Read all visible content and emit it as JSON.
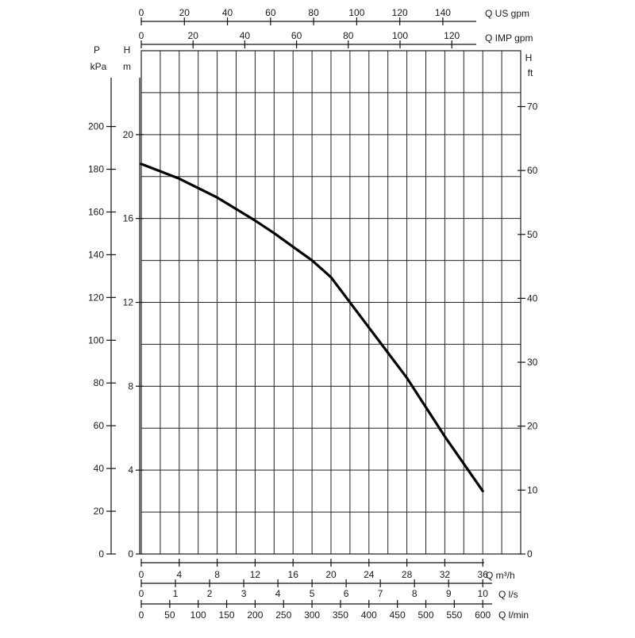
{
  "chart_data": {
    "type": "line",
    "title": "",
    "series": [
      {
        "x": [
          0,
          4,
          8,
          12,
          14,
          18,
          20,
          24,
          26,
          28,
          30,
          32,
          34,
          36
        ],
        "y": [
          18.6,
          17.9,
          17.0,
          15.9,
          15.3,
          14.0,
          13.2,
          10.8,
          9.6,
          8.4,
          7.0,
          5.6,
          4.3,
          3.0
        ]
      }
    ],
    "x_axes": [
      {
        "label": "Q m³/h",
        "ticks": [
          "0",
          "4",
          "8",
          "12",
          "16",
          "20",
          "24",
          "28",
          "32",
          "36"
        ],
        "range": [
          0,
          40
        ]
      },
      {
        "label": "Q l/s",
        "ticks": [
          "0",
          "1",
          "2",
          "3",
          "4",
          "5",
          "6",
          "7",
          "8",
          "9",
          "10"
        ]
      },
      {
        "label": "Q l/min",
        "ticks": [
          "0",
          "50",
          "100",
          "150",
          "200",
          "250",
          "300",
          "350",
          "400",
          "450",
          "500",
          "550",
          "600"
        ]
      },
      {
        "label": "Q US gpm",
        "ticks": [
          "0",
          "20",
          "40",
          "60",
          "80",
          "100",
          "120",
          "140"
        ]
      },
      {
        "label": "Q IMP gpm",
        "ticks": [
          "0",
          "20",
          "40",
          "60",
          "80",
          "100",
          "120"
        ]
      }
    ],
    "y_axes": [
      {
        "label_top": "P",
        "label_bottom": "kPa",
        "ticks": [
          "0",
          "20",
          "40",
          "60",
          "80",
          "100",
          "120",
          "140",
          "160",
          "180",
          "200"
        ]
      },
      {
        "label_top": "H",
        "label_bottom": "m",
        "ticks": [
          "0",
          "4",
          "8",
          "12",
          "16",
          "20"
        ],
        "range": [
          0,
          24
        ]
      },
      {
        "label_top": "H",
        "label_bottom": "ft",
        "ticks": [
          "0",
          "10",
          "20",
          "30",
          "40",
          "50",
          "60",
          "70"
        ]
      }
    ],
    "grid": true
  }
}
